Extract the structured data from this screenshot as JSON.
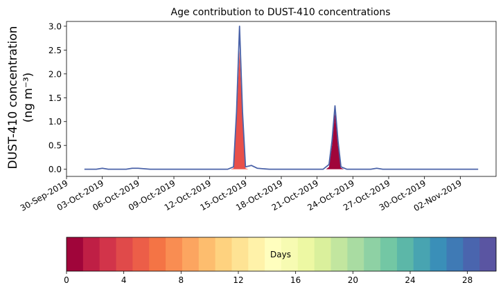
{
  "chart_data": {
    "type": "area",
    "title": "Age contribution to DUST-410 concentrations",
    "ylabel_line1": "DUST-410 concentration",
    "ylabel_line2": "(ng m⁻³)",
    "xlabel": "",
    "ylim": [
      -0.15,
      3.1
    ],
    "xlim": [
      "2019-09-30",
      "2019-11-05"
    ],
    "yticks": [
      "0.0",
      "0.5",
      "1.0",
      "1.5",
      "2.0",
      "2.5",
      "3.0"
    ],
    "yticks_values": [
      0.0,
      0.5,
      1.0,
      1.5,
      2.0,
      2.5,
      3.0
    ],
    "xticks": [
      "30-Sep-2019",
      "03-Oct-2019",
      "06-Oct-2019",
      "09-Oct-2019",
      "12-Oct-2019",
      "15-Oct-2019",
      "18-Oct-2019",
      "21-Oct-2019",
      "24-Oct-2019",
      "27-Oct-2019",
      "30-Oct-2019",
      "02-Nov-2019"
    ],
    "xticks_dates": [
      "2019-09-30",
      "2019-10-03",
      "2019-10-06",
      "2019-10-09",
      "2019-10-12",
      "2019-10-15",
      "2019-10-18",
      "2019-10-21",
      "2019-10-24",
      "2019-10-27",
      "2019-10-30",
      "2019-11-02"
    ],
    "total_series": {
      "color": "#4a62a8",
      "x": [
        "2019-10-01 12:00",
        "2019-10-02 12:00",
        "2019-10-03 00:00",
        "2019-10-03 12:00",
        "2019-10-05 00:00",
        "2019-10-05 12:00",
        "2019-10-06 00:00",
        "2019-10-07 00:00",
        "2019-10-13 12:00",
        "2019-10-14 00:00",
        "2019-10-14 06:00",
        "2019-10-14 12:00",
        "2019-10-14 18:00",
        "2019-10-15 00:00",
        "2019-10-15 12:00",
        "2019-10-16 00:00",
        "2019-10-16 12:00",
        "2019-10-17 00:00",
        "2019-10-17 12:00",
        "2019-10-21 12:00",
        "2019-10-22 00:00",
        "2019-10-22 06:00",
        "2019-10-22 12:00",
        "2019-10-22 18:00",
        "2019-10-23 00:00",
        "2019-10-23 12:00",
        "2019-10-25 12:00",
        "2019-10-26 00:00",
        "2019-10-26 12:00",
        "2019-11-03 12:00"
      ],
      "values": [
        0,
        0,
        0.02,
        0,
        0,
        0.02,
        0.02,
        0,
        0,
        0.05,
        1.2,
        3.0,
        1.2,
        0.05,
        0.08,
        0.02,
        0.01,
        0,
        0,
        0,
        0.1,
        0.6,
        1.33,
        0.6,
        0.05,
        0,
        0,
        0.02,
        0,
        0
      ]
    },
    "age_peaks": [
      {
        "age_days": 2,
        "color": "#e8504a",
        "x": [
          "2019-10-13 18:00",
          "2019-10-14 00:00",
          "2019-10-14 06:00",
          "2019-10-14 12:00",
          "2019-10-14 18:00",
          "2019-10-15 00:00",
          "2019-10-15 06:00"
        ],
        "values": [
          0,
          0.02,
          1.05,
          2.5,
          1.05,
          0.02,
          0
        ]
      },
      {
        "age_days": 0,
        "color": "#a0053a",
        "x": [
          "2019-10-21 18:00",
          "2019-10-22 00:00",
          "2019-10-22 06:00",
          "2019-10-22 12:00",
          "2019-10-22 18:00",
          "2019-10-23 00:00",
          "2019-10-23 06:00"
        ],
        "values": [
          0,
          0.05,
          0.5,
          1.2,
          0.5,
          0.03,
          0
        ]
      }
    ],
    "colorbar": {
      "label": "Days",
      "range": [
        0,
        30
      ],
      "ticks": [
        "0",
        "4",
        "8",
        "12",
        "16",
        "20",
        "24",
        "28"
      ],
      "ticks_values": [
        0,
        4,
        8,
        12,
        16,
        20,
        24,
        28
      ],
      "colors": [
        "#a0053a",
        "#bf1f45",
        "#d2344a",
        "#e04a4a",
        "#ec5e48",
        "#f47445",
        "#f98d52",
        "#fca560",
        "#fdbd6e",
        "#fed27f",
        "#fee394",
        "#fff2a9",
        "#fffebe",
        "#f7fbb2",
        "#edf8a3",
        "#daf09c",
        "#c2e69f",
        "#a9dca2",
        "#8ed1a4",
        "#73c7a4",
        "#5cb7a8",
        "#48a4b1",
        "#3a8fb8",
        "#3f7ab5",
        "#4a65ae",
        "#5a55a2"
      ]
    }
  }
}
